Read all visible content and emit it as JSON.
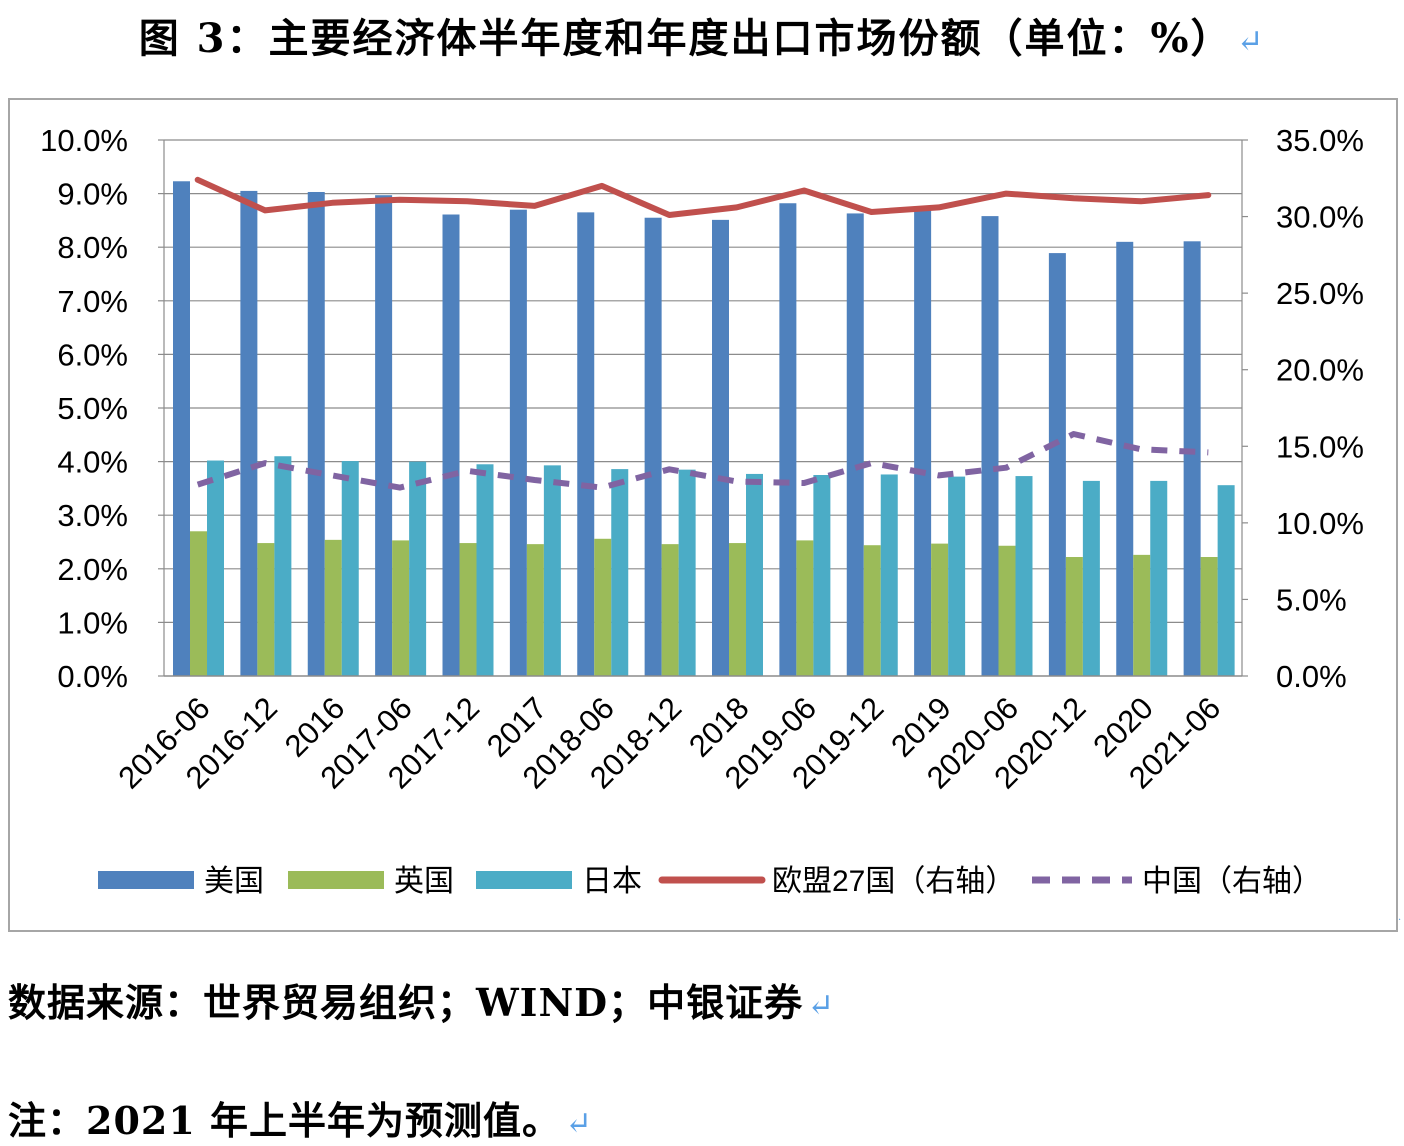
{
  "page": {
    "title": "图 3：主要经济体半年度和年度出口市场份额（单位：%）",
    "source": "数据来源：世界贸易组织；WIND；中银证券",
    "note": "注：2021 年上半年为预测值。",
    "return_mark": "↵"
  },
  "chart_data": {
    "type": "bar",
    "title": "",
    "categories": [
      "2016-06",
      "2016-12",
      "2016",
      "2017-06",
      "2017-12",
      "2017",
      "2018-06",
      "2018-12",
      "2018",
      "2019-06",
      "2019-12",
      "2019",
      "2020-06",
      "2020-12",
      "2020",
      "2021-06"
    ],
    "y_left": {
      "ylim": [
        0,
        10
      ],
      "ticks": [
        "0.0%",
        "1.0%",
        "2.0%",
        "3.0%",
        "4.0%",
        "5.0%",
        "6.0%",
        "7.0%",
        "8.0%",
        "9.0%",
        "10.0%"
      ]
    },
    "y_right": {
      "ylim": [
        0,
        35
      ],
      "ticks": [
        "0.0%",
        "5.0%",
        "10.0%",
        "15.0%",
        "20.0%",
        "25.0%",
        "30.0%",
        "35.0%"
      ]
    },
    "grid": true,
    "legend_position": "bottom",
    "series": [
      {
        "name": "美国",
        "kind": "bar",
        "axis": "left",
        "color": "#4f81bd",
        "values": [
          9.23,
          9.05,
          9.03,
          8.97,
          8.61,
          8.7,
          8.65,
          8.55,
          8.51,
          8.82,
          8.63,
          8.73,
          8.58,
          7.89,
          8.1,
          8.11
        ]
      },
      {
        "name": "英国",
        "kind": "bar",
        "axis": "left",
        "color": "#9bbb59",
        "values": [
          2.7,
          2.48,
          2.54,
          2.53,
          2.48,
          2.46,
          2.56,
          2.46,
          2.48,
          2.53,
          2.44,
          2.47,
          2.43,
          2.22,
          2.26,
          2.22
        ]
      },
      {
        "name": "日本",
        "kind": "bar",
        "axis": "left",
        "color": "#4bacc6",
        "values": [
          4.02,
          4.1,
          4.01,
          4.0,
          3.95,
          3.93,
          3.86,
          3.85,
          3.77,
          3.75,
          3.76,
          3.72,
          3.73,
          3.64,
          3.64,
          3.56
        ]
      },
      {
        "name": "欧盟27国（右轴）",
        "kind": "line",
        "axis": "right",
        "color": "#c0504d",
        "dash": false,
        "values": [
          32.4,
          30.4,
          30.9,
          31.1,
          31.0,
          30.7,
          32.0,
          30.1,
          30.6,
          31.7,
          30.3,
          30.6,
          31.5,
          31.2,
          31.0,
          31.4
        ]
      },
      {
        "name": "中国（右轴）",
        "kind": "line",
        "axis": "right",
        "color": "#8064a2",
        "dash": true,
        "values": [
          12.5,
          13.9,
          13.1,
          12.3,
          13.4,
          12.8,
          12.3,
          13.5,
          12.7,
          12.6,
          13.9,
          13.1,
          13.6,
          15.8,
          14.8,
          14.6
        ]
      }
    ]
  }
}
